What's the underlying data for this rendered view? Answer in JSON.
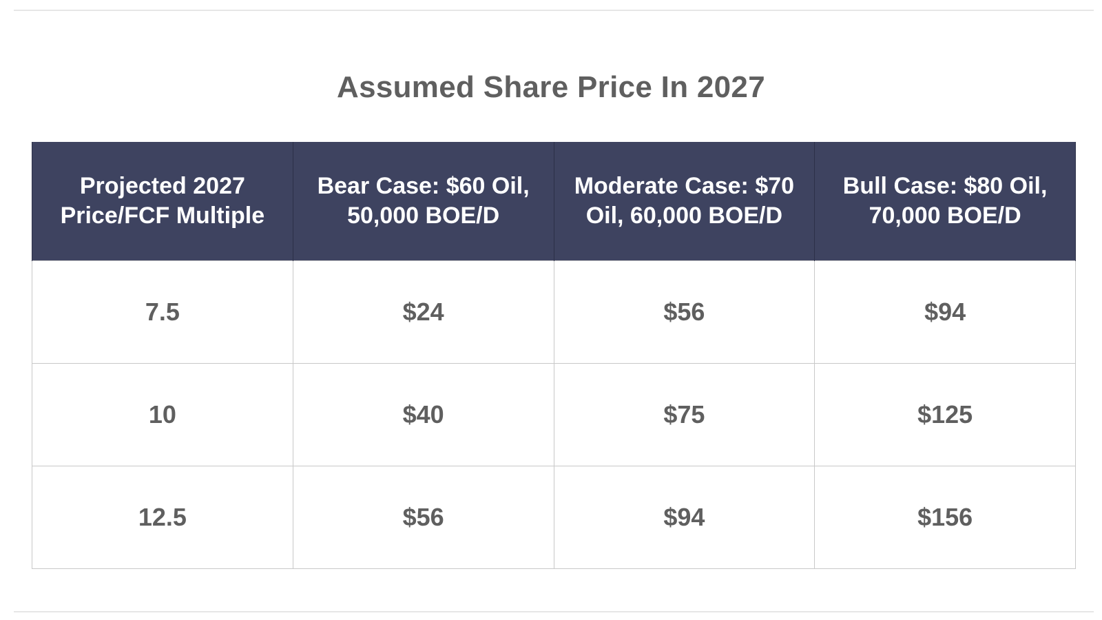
{
  "chart_data": {
    "type": "table",
    "title": "Assumed Share Price In 2027",
    "columns": [
      "Projected 2027 Price/FCF Multiple",
      "Bear Case: $60 Oil, 50,000 BOE/D",
      "Moderate Case: $70 Oil, 60,000 BOE/D",
      "Bull Case: $80 Oil, 70,000 BOE/D"
    ],
    "rows": [
      [
        "7.5",
        "$24",
        "$56",
        "$94"
      ],
      [
        "10",
        "$40",
        "$75",
        "$125"
      ],
      [
        "12.5",
        "$56",
        "$94",
        "$156"
      ]
    ]
  },
  "colors": {
    "header_background": "#3e4360",
    "header_text": "#ffffff",
    "body_text": "#5f5f5f",
    "grid": "#c8c8c8"
  }
}
